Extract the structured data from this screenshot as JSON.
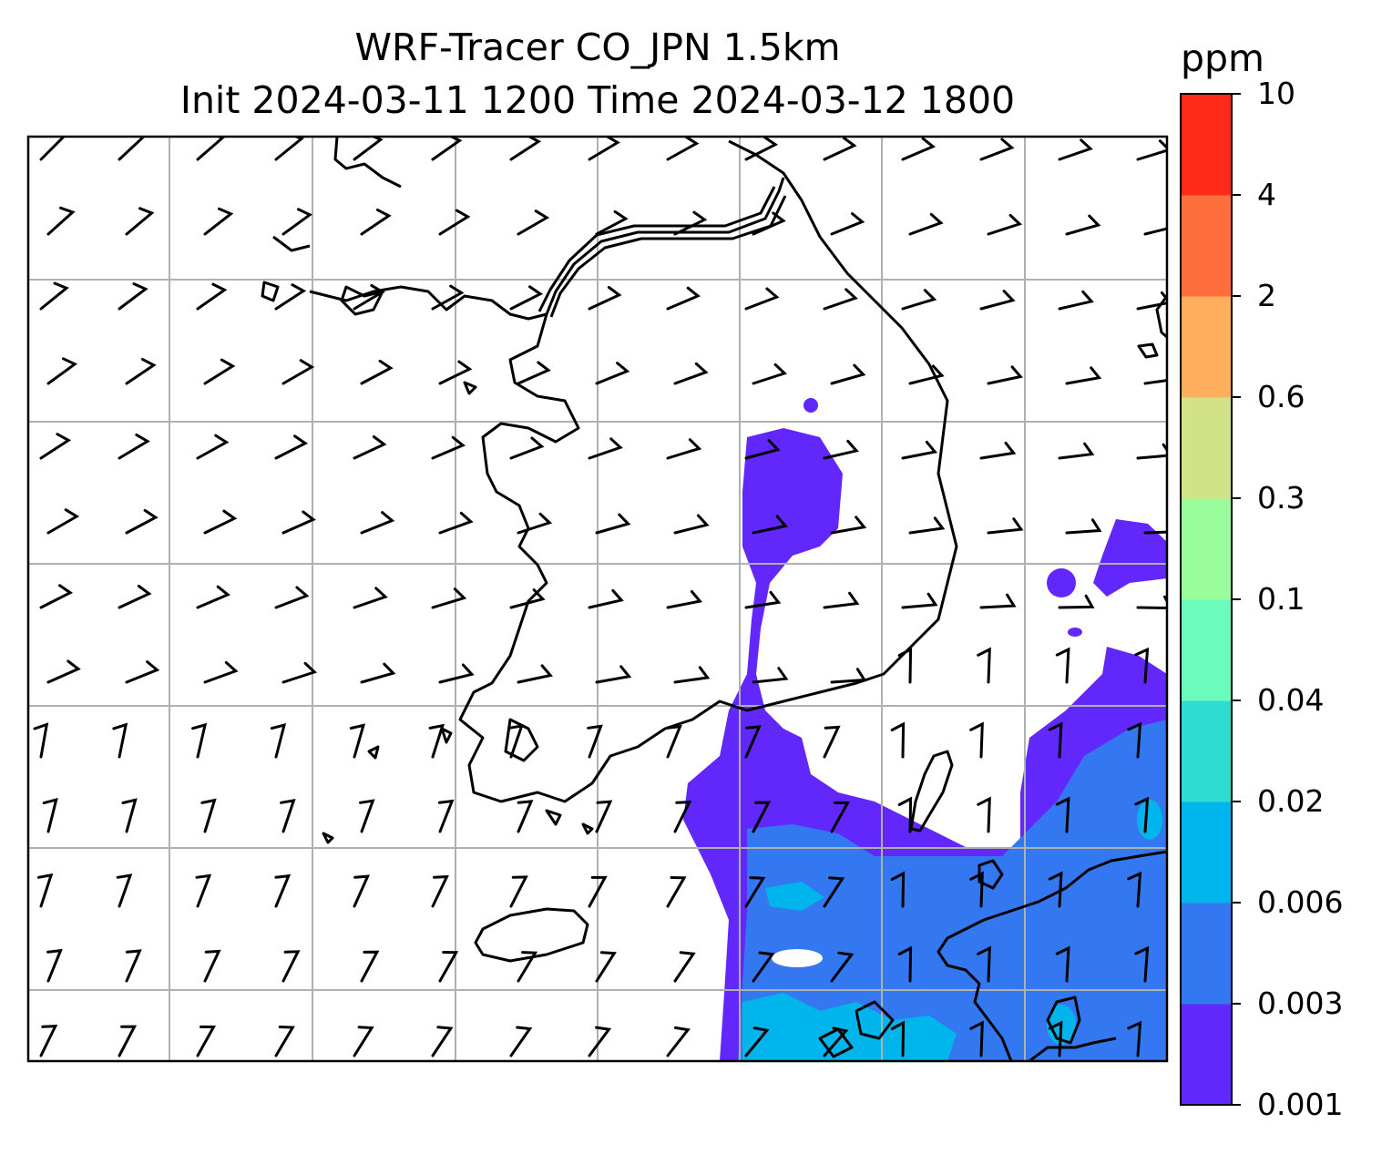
{
  "title": {
    "line1": "WRF-Tracer CO_JPN 1.5km",
    "line2": "Init 2024-03-11 1200 Time 2024-03-12 1800"
  },
  "colorbar": {
    "unit": "ppm",
    "levels": [
      "0.001",
      "0.003",
      "0.006",
      "0.02",
      "0.04",
      "0.1",
      "0.3",
      "0.6",
      "2",
      "4",
      "10"
    ],
    "colors": [
      "#6127fb",
      "#3378f0",
      "#00b4ec",
      "#2fdcd2",
      "#6bfcbd",
      "#9afd9c",
      "#d1e287",
      "#ffae5e",
      "#ff6f3d",
      "#ff2a17"
    ]
  },
  "map": {
    "gridlines": "on",
    "grid_color": "#b0b0b0",
    "coastline_color": "#000000",
    "barb_color": "#000000"
  }
}
